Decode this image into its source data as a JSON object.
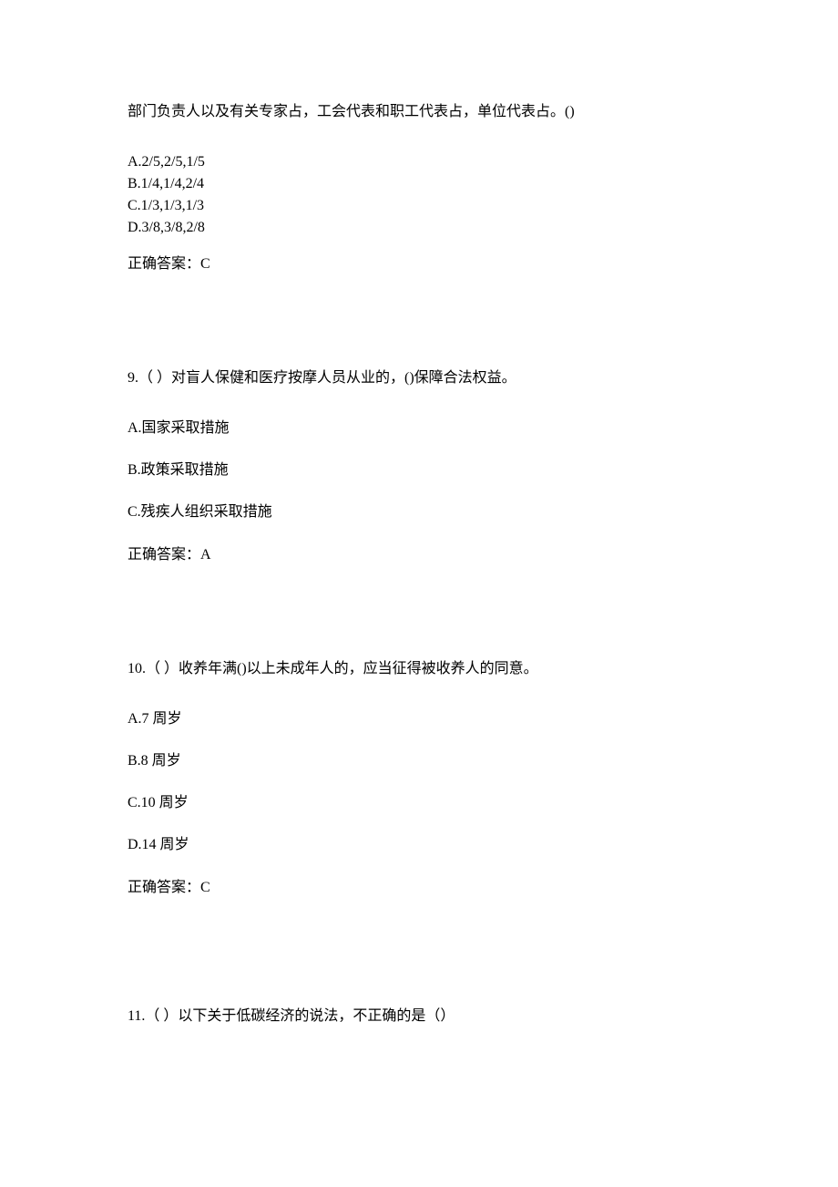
{
  "q8": {
    "continuation": "部门负责人以及有关专家占，工会代表和职工代表占，单位代表占。()",
    "options": {
      "a": "A.2/5,2/5,1/5",
      "b": "B.1/4,1/4,2/4",
      "c": "C.1/3,1/3,1/3",
      "d": "D.3/8,3/8,2/8"
    },
    "answer": "正确答案：C"
  },
  "q9": {
    "text": "9.（ ）对盲人保健和医疗按摩人员从业的，()保障合法权益。",
    "options": {
      "a": "A.国家采取措施",
      "b": "B.政策采取措施",
      "c": "C.残疾人组织采取措施"
    },
    "answer": "正确答案：A"
  },
  "q10": {
    "text": "10.（ ）收养年满()以上未成年人的，应当征得被收养人的同意。",
    "options": {
      "a": "A.7 周岁",
      "b": "B.8 周岁",
      "c": "C.10 周岁",
      "d": "D.14 周岁"
    },
    "answer": "正确答案：C"
  },
  "q11": {
    "text": "11.（ ）以下关于低碳经济的说法，不正确的是（）"
  }
}
